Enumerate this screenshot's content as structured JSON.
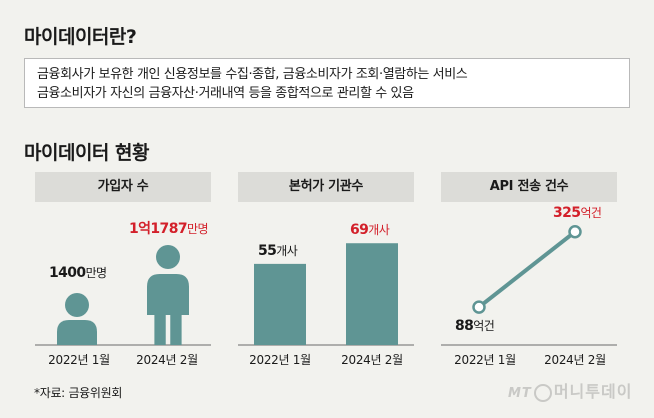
{
  "section1": {
    "title": "마이데이터란?",
    "lines": [
      "금융회사가 보유한 개인 신용정보를 수집·종합, 금융소비자가 조회·열람하는 서비스",
      "금융소비자가 자신의 금융자산·거래내역 등을 종합적으로 관리할 수 있음"
    ]
  },
  "section2": {
    "title": "마이데이터 현황"
  },
  "colors": {
    "teal": "#5f9594",
    "red": "#d3202a",
    "header_bg": "#dcdcd8",
    "background": "#f2f2ee"
  },
  "chart_data": [
    {
      "type": "pictogram",
      "title": "가입자 수",
      "categories": [
        "2022년 1월",
        "2024년 2월"
      ],
      "values": [
        14000000,
        117870000
      ],
      "labels": [
        {
          "num": "1400",
          "unit": "만명"
        },
        {
          "num": "1억1787",
          "unit": "만명"
        }
      ]
    },
    {
      "type": "bar",
      "title": "본허가 기관수",
      "categories": [
        "2022년 1월",
        "2024년 2월"
      ],
      "values": [
        55,
        69
      ],
      "labels": [
        {
          "num": "55",
          "unit": "개사"
        },
        {
          "num": "69",
          "unit": "개사"
        }
      ]
    },
    {
      "type": "line",
      "title": "API 전송 건수",
      "categories": [
        "2022년 1월",
        "2024년 2월"
      ],
      "values": [
        88,
        325
      ],
      "unit": "억건",
      "labels": [
        {
          "num": "88",
          "unit": "억건"
        },
        {
          "num": "325",
          "unit": "억건"
        }
      ]
    }
  ],
  "source": "*자료: 금융위원회",
  "watermark": {
    "prefix": "MT",
    "text": "머니투데이"
  }
}
